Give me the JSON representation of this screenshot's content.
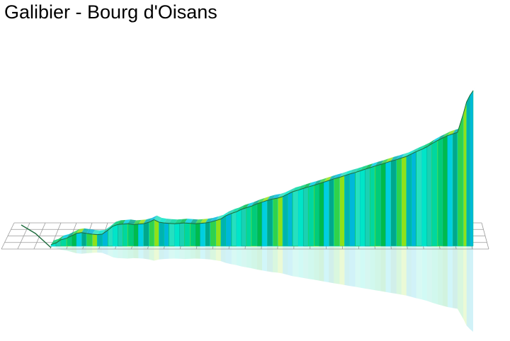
{
  "title": "Galibier - Bourg d'Oisans",
  "chart_data": {
    "type": "area",
    "title": "Galibier - Bourg d'Oisans",
    "xlabel": "",
    "ylabel": "",
    "view": "3d-perspective",
    "grid": true,
    "reflection": true,
    "colors": {
      "wall_palette": [
        "#00e5c8",
        "#1ad1b3",
        "#00d7a0",
        "#00cc7a",
        "#00bb4d",
        "#00cfe0",
        "#00a88c",
        "#2fd24c",
        "#8fe11a",
        "#00b3b0",
        "#00b8d9",
        "#25e0c0"
      ],
      "grid": "#9a9a9a",
      "top_line": "#1c6b3c"
    },
    "x": [
      0,
      0.6,
      1.2,
      1.9,
      2.5,
      3.1,
      3.7,
      4.3,
      5.0,
      5.6,
      6.2,
      6.9,
      7.5,
      8.1,
      8.7,
      9.3,
      10.0,
      10.6,
      11.2,
      11.9,
      12.5,
      13.1,
      13.7,
      14.3,
      15.0,
      15.6,
      16.2,
      16.9,
      17.5,
      18.1,
      18.7,
      19.3,
      20.0,
      20.6,
      21.2,
      21.9,
      22.5,
      23.1,
      23.7,
      24.3,
      25.0,
      25.6,
      26.2,
      26.9,
      27.5,
      28.1,
      28.7,
      29.3,
      30.0,
      30.6,
      31.2,
      31.9,
      32.5,
      33.1,
      33.7,
      34.3,
      35.0,
      35.6,
      36.2,
      36.9,
      37.5,
      38.1,
      38.7,
      39.3,
      40.0,
      40.6,
      41.2,
      41.9,
      42.5,
      43.1,
      43.7,
      44.3,
      45.0,
      45.6,
      46.2,
      46.9,
      47.5,
      48.1,
      48.7,
      49.3,
      50.0,
      50.4,
      50.8,
      51.2
    ],
    "y": [
      720,
      740,
      780,
      800,
      830,
      860,
      870,
      860,
      850,
      845,
      850,
      900,
      950,
      970,
      975,
      980,
      970,
      975,
      980,
      1000,
      1030,
      1000,
      990,
      985,
      980,
      985,
      990,
      985,
      980,
      985,
      990,
      1000,
      1020,
      1040,
      1080,
      1110,
      1130,
      1160,
      1180,
      1200,
      1230,
      1250,
      1270,
      1290,
      1300,
      1320,
      1350,
      1380,
      1400,
      1420,
      1440,
      1460,
      1480,
      1500,
      1520,
      1540,
      1560,
      1580,
      1600,
      1620,
      1640,
      1660,
      1680,
      1700,
      1720,
      1740,
      1760,
      1780,
      1800,
      1820,
      1850,
      1880,
      1910,
      1940,
      1980,
      2020,
      2050,
      2080,
      2100,
      2120,
      2350,
      2500,
      2580,
      2642
    ]
  }
}
